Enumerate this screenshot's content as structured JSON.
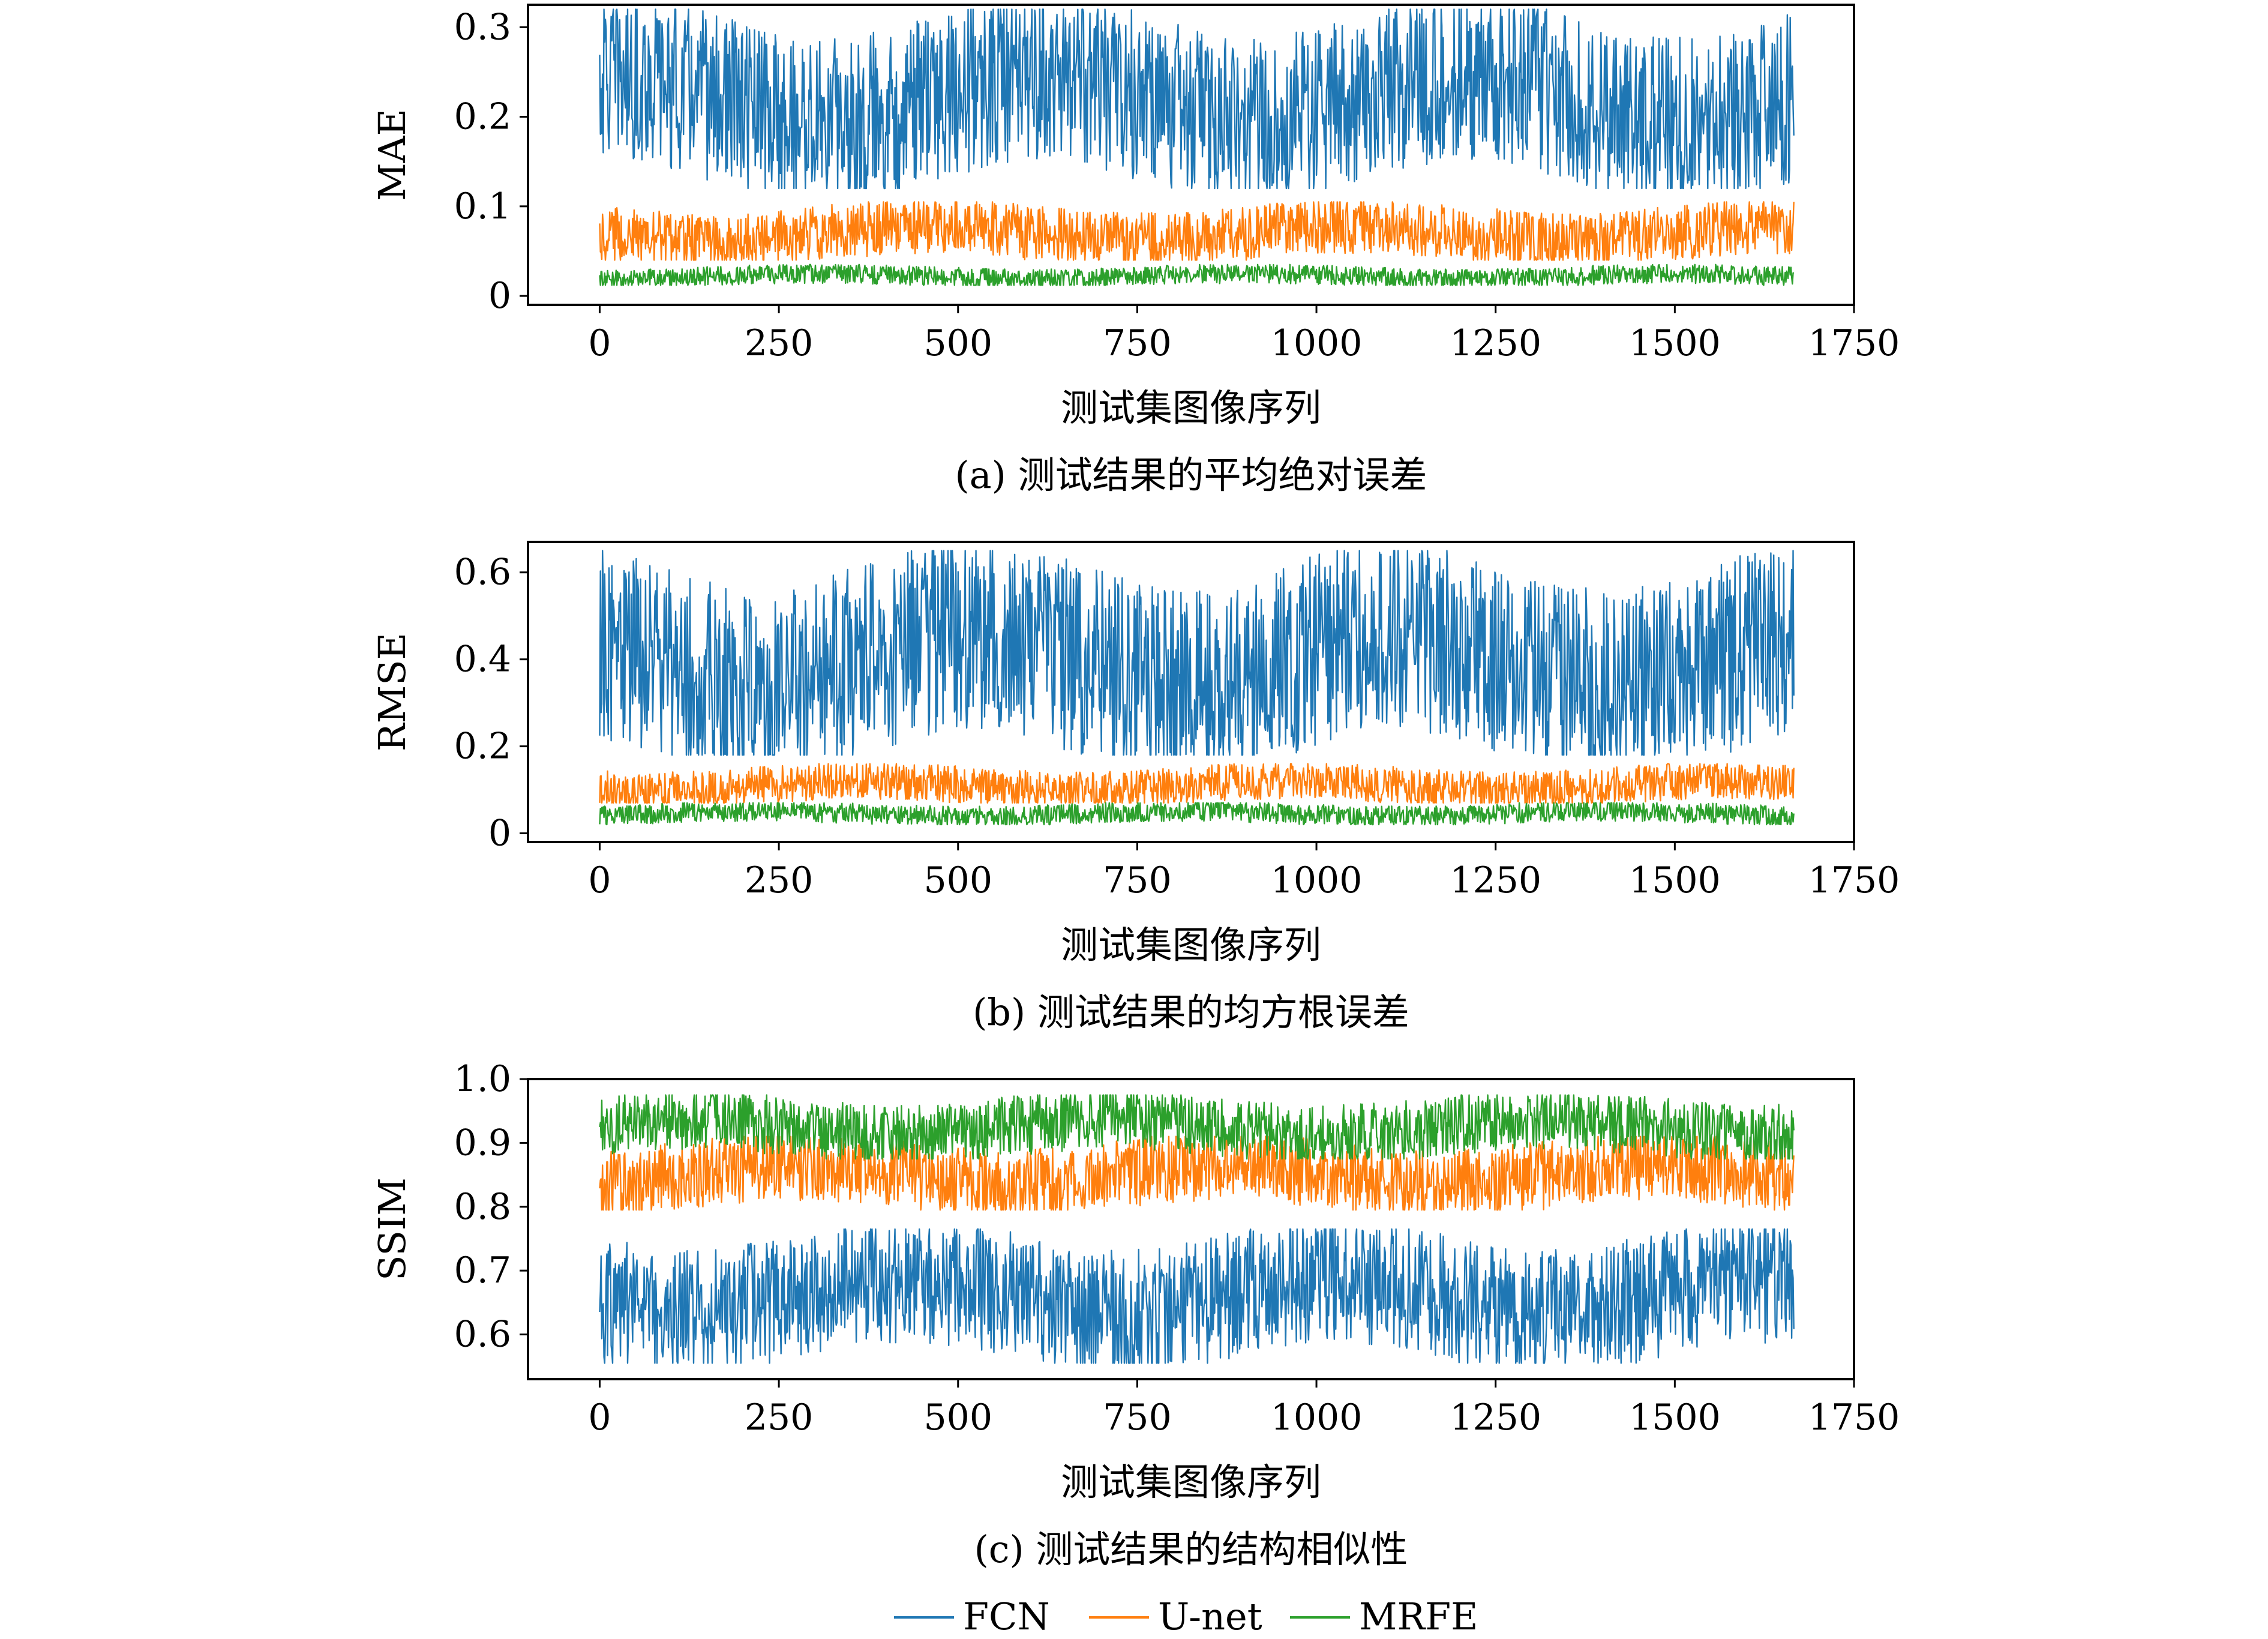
{
  "chart_data": [
    {
      "type": "line",
      "caption": "(a) 测试结果的平均绝对误差",
      "xlabel": "测试集图像序列",
      "ylabel": "MAE",
      "xlim": [
        -100,
        1750
      ],
      "ylim": [
        -0.01,
        0.325
      ],
      "xticks": [
        0,
        250,
        500,
        750,
        1000,
        1250,
        1500,
        1750
      ],
      "yticks": [
        0,
        0.1,
        0.2,
        0.3
      ],
      "ytick_labels": [
        "0",
        "0.1",
        "0.2",
        "0.3"
      ],
      "n_points": 1667,
      "series": [
        {
          "name": "FCN",
          "color": "#1f77b4",
          "min": 0.12,
          "max": 0.32,
          "mean": 0.22
        },
        {
          "name": "U-net",
          "color": "#ff7f0e",
          "min": 0.04,
          "max": 0.105,
          "mean": 0.07
        },
        {
          "name": "MRFE",
          "color": "#2ca02c",
          "min": 0.012,
          "max": 0.035,
          "mean": 0.022
        }
      ]
    },
    {
      "type": "line",
      "caption": "(b) 测试结果的均方根误差",
      "xlabel": "测试集图像序列",
      "ylabel": "RMSE",
      "xlim": [
        -100,
        1750
      ],
      "ylim": [
        -0.02,
        0.67
      ],
      "xticks": [
        0,
        250,
        500,
        750,
        1000,
        1250,
        1500,
        1750
      ],
      "yticks": [
        0,
        0.2,
        0.4,
        0.6
      ],
      "ytick_labels": [
        "0",
        "0.2",
        "0.4",
        "0.6"
      ],
      "n_points": 1667,
      "series": [
        {
          "name": "FCN",
          "color": "#1f77b4",
          "min": 0.18,
          "max": 0.65,
          "mean": 0.4
        },
        {
          "name": "U-net",
          "color": "#ff7f0e",
          "min": 0.07,
          "max": 0.16,
          "mean": 0.11
        },
        {
          "name": "MRFE",
          "color": "#2ca02c",
          "min": 0.02,
          "max": 0.07,
          "mean": 0.045
        }
      ]
    },
    {
      "type": "line",
      "caption": "(c) 测试结果的结构相似性",
      "xlabel": "测试集图像序列",
      "ylabel": "SSIM",
      "xlim": [
        -100,
        1750
      ],
      "ylim": [
        0.53,
        1.0
      ],
      "xticks": [
        0,
        250,
        500,
        750,
        1000,
        1250,
        1500,
        1750
      ],
      "yticks": [
        0.6,
        0.7,
        0.8,
        0.9,
        1.0
      ],
      "ytick_labels": [
        "0.6",
        "0.7",
        "0.8",
        "0.9",
        "1.0"
      ],
      "n_points": 1667,
      "series": [
        {
          "name": "FCN",
          "color": "#1f77b4",
          "min": 0.555,
          "max": 0.765,
          "mean": 0.66
        },
        {
          "name": "U-net",
          "color": "#ff7f0e",
          "min": 0.795,
          "max": 0.91,
          "mean": 0.85
        },
        {
          "name": "MRFE",
          "color": "#2ca02c",
          "min": 0.875,
          "max": 0.975,
          "mean": 0.925
        }
      ]
    }
  ],
  "legend": {
    "items": [
      {
        "label": "FCN",
        "color": "#1f77b4"
      },
      {
        "label": "U-net",
        "color": "#ff7f0e"
      },
      {
        "label": "MRFE",
        "color": "#2ca02c"
      }
    ]
  }
}
